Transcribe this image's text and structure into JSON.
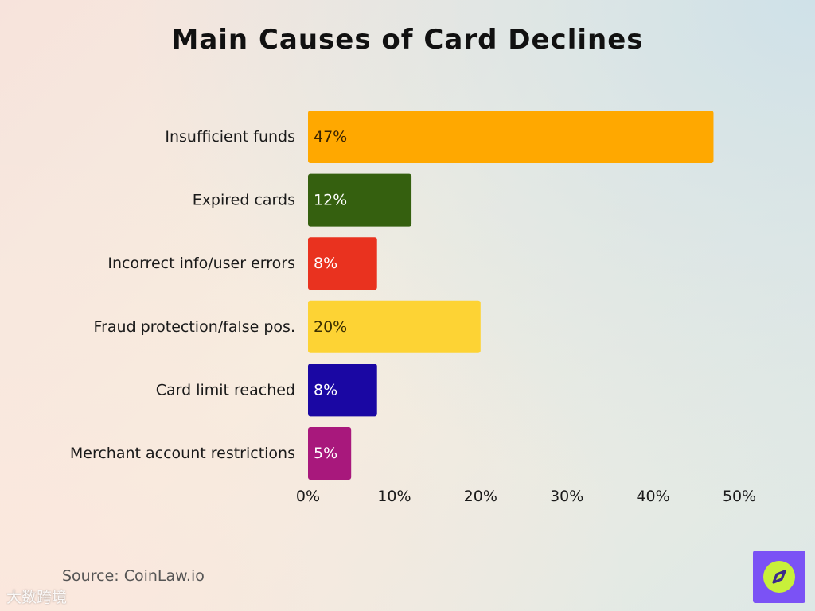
{
  "chart_data": {
    "type": "bar",
    "orientation": "horizontal",
    "title": "Main Causes of Card Declines",
    "categories": [
      "Insufficient funds",
      "Expired cards",
      "Incorrect info/user errors",
      "Fraud protection/false pos.",
      "Card limit reached",
      "Merchant account restrictions"
    ],
    "values": [
      47,
      12,
      8,
      20,
      8,
      5
    ],
    "value_labels": [
      "47%",
      "12%",
      "8%",
      "20%",
      "8%",
      "5%"
    ],
    "colors": [
      "#ffa800",
      "#35600f",
      "#e9321f",
      "#fdd334",
      "#1a07a3",
      "#a8187c"
    ],
    "label_colors": [
      "#3a2300",
      "#ffffff",
      "#ffffff",
      "#3a2e00",
      "#ffffff",
      "#ffffff"
    ],
    "xlim": [
      0,
      50
    ],
    "xticks": [
      0,
      10,
      20,
      30,
      40,
      50
    ],
    "xtick_labels": [
      "0%",
      "10%",
      "20%",
      "30%",
      "40%",
      "50%"
    ],
    "xlabel": "",
    "ylabel": "",
    "grid": false,
    "legend": "none"
  },
  "source": "Source: CoinLaw.io",
  "watermark": "大数跨境",
  "logo": {
    "icon": "compass-icon",
    "background": "#7b52f5",
    "circle": "#c8f03a"
  }
}
